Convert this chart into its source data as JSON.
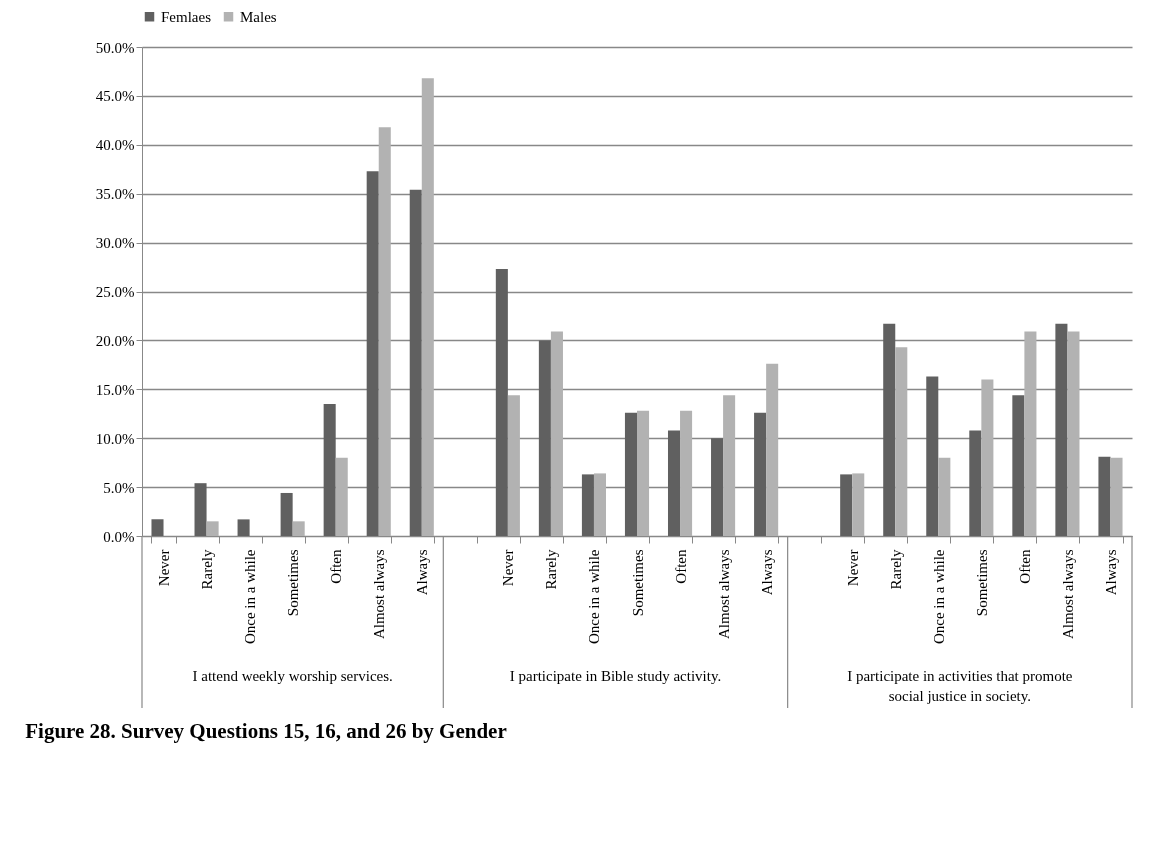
{
  "chart_data": {
    "type": "bar",
    "title": "Figure 28. Survey Questions 15, 16, and 26 by Gender",
    "categories": [
      "Never",
      "Rarely",
      "Once in a while",
      "Sometimes",
      "Often",
      "Almost always",
      "Always",
      null,
      "Never",
      "Rarely",
      "Once in a while",
      "Sometimes",
      "Often",
      "Almost always",
      "Always",
      null,
      "Never",
      "Rarely",
      "Once in a while",
      "Sometimes",
      "Often",
      "Almost always",
      "Always"
    ],
    "series": [
      {
        "name": "Femlaes",
        "color": "#606060",
        "values": [
          1.7,
          5.4,
          1.7,
          4.4,
          13.5,
          37.3,
          35.4,
          null,
          27.3,
          20.0,
          6.3,
          12.6,
          10.8,
          10.0,
          12.6,
          null,
          6.3,
          21.7,
          16.3,
          10.8,
          14.4,
          21.7,
          8.1
        ]
      },
      {
        "name": "Males",
        "color": "#b2b2b2",
        "values": [
          0,
          1.5,
          0,
          1.5,
          8.0,
          41.8,
          46.8,
          null,
          14.4,
          20.9,
          6.4,
          12.8,
          12.8,
          14.4,
          17.6,
          null,
          6.4,
          19.3,
          8.0,
          16.0,
          20.9,
          20.9,
          8.0
        ]
      }
    ],
    "annotations": [
      "I attend weekly worship services.",
      "I participate in Bible study activity.",
      "I participate in activities that promote social justice in society."
    ],
    "ylim": [
      0,
      50
    ],
    "yticks": [
      {
        "value": 0,
        "label": "0.0%"
      },
      {
        "value": 5,
        "label": "5.0%"
      },
      {
        "value": 10,
        "label": "10.0%"
      },
      {
        "value": 15,
        "label": "15.0%"
      },
      {
        "value": 20,
        "label": "20.0%"
      },
      {
        "value": 25,
        "label": "25.0%"
      },
      {
        "value": 30,
        "label": "30.0%"
      },
      {
        "value": 35,
        "label": "35.0%"
      },
      {
        "value": 40,
        "label": "40.0%"
      },
      {
        "value": 45,
        "label": "45.0%"
      },
      {
        "value": 50,
        "label": "50.0%"
      }
    ],
    "grid": true,
    "legend": "top"
  }
}
